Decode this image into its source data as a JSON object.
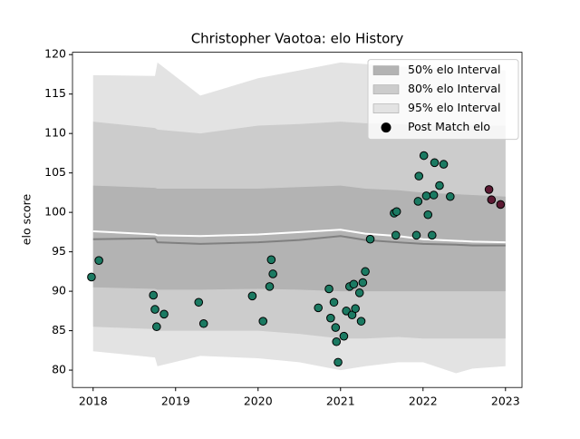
{
  "chart_data": {
    "type": "band",
    "title": "Christopher Vaotoa: elo History",
    "ylabel": "elo score",
    "xlim": [
      2017.75,
      2023.2
    ],
    "ylim": [
      77.8,
      120.3
    ],
    "xticks": [
      2018,
      2019,
      2020,
      2021,
      2022,
      2023
    ],
    "yticks": [
      80,
      85,
      90,
      95,
      100,
      105,
      110,
      115,
      120
    ],
    "legend": "upper right",
    "bands": {
      "x": [
        2018.0,
        2018.75,
        2018.78,
        2019.3,
        2020.0,
        2020.5,
        2021.0,
        2021.3,
        2021.7,
        2022.0,
        2022.4,
        2022.6,
        2023.0
      ],
      "intervals": [
        {
          "name": "95% elo Interval",
          "color": "#e3e3e3",
          "upper": [
            117.4,
            117.3,
            119.0,
            114.8,
            117.0,
            118.0,
            119.0,
            118.8,
            118.5,
            118.4,
            118.2,
            118.0,
            118.0
          ],
          "lower": [
            82.4,
            81.6,
            80.5,
            81.8,
            81.5,
            81.0,
            80.0,
            80.5,
            81.0,
            81.0,
            79.6,
            80.2,
            80.5
          ]
        },
        {
          "name": "80% elo Interval",
          "color": "#cccccc",
          "upper": [
            111.5,
            110.7,
            110.5,
            110.0,
            111.0,
            111.2,
            111.5,
            111.3,
            111.2,
            111.0,
            111.0,
            111.0,
            111.0
          ],
          "lower": [
            85.5,
            85.2,
            85.0,
            85.0,
            85.0,
            84.6,
            84.0,
            84.0,
            84.2,
            84.0,
            84.0,
            84.0,
            84.0
          ]
        },
        {
          "name": "50% elo Interval",
          "color": "#b3b3b3",
          "upper": [
            103.4,
            103.1,
            103.0,
            103.0,
            103.0,
            103.2,
            103.4,
            103.0,
            102.8,
            102.5,
            102.3,
            102.2,
            102.0
          ],
          "lower": [
            90.5,
            90.3,
            90.2,
            90.2,
            90.3,
            90.2,
            90.0,
            90.0,
            90.0,
            90.0,
            90.0,
            90.0,
            90.0
          ]
        }
      ]
    },
    "lines": [
      {
        "color": "#808080",
        "values": [
          96.6,
          96.7,
          96.2,
          96.0,
          96.2,
          96.5,
          97.0,
          96.5,
          96.2,
          96.0,
          95.9,
          95.8,
          95.8
        ]
      },
      {
        "color": "#ffffff",
        "values": [
          97.6,
          97.2,
          97.1,
          97.0,
          97.2,
          97.5,
          97.8,
          97.3,
          97.0,
          96.6,
          96.4,
          96.3,
          96.2
        ]
      }
    ],
    "points": {
      "name": "Post Match elo",
      "legend_color": "#000000",
      "edgecolor": "#000000",
      "series": [
        {
          "color": "#1b7a62",
          "x": [
            2017.98,
            2018.07,
            2018.73,
            2018.75,
            2018.77,
            2018.86,
            2019.28,
            2019.34,
            2019.93,
            2020.06,
            2020.14,
            2020.16,
            2020.18,
            2020.73,
            2020.86,
            2020.88,
            2020.92,
            2020.94,
            2020.95,
            2020.97,
            2021.04,
            2021.07,
            2021.11,
            2021.14,
            2021.16,
            2021.18,
            2021.23,
            2021.25,
            2021.27,
            2021.3,
            2021.36,
            2021.65,
            2021.68,
            2021.67,
            2021.92,
            2021.94,
            2021.95,
            2022.01,
            2022.04,
            2022.06,
            2022.11,
            2022.13,
            2022.14,
            2022.2,
            2022.25,
            2022.33
          ],
          "values": [
            91.8,
            93.9,
            89.5,
            87.7,
            85.5,
            87.1,
            88.6,
            85.9,
            89.4,
            86.2,
            90.6,
            94.0,
            92.2,
            87.9,
            90.3,
            86.6,
            88.6,
            85.4,
            83.6,
            81.0,
            84.3,
            87.5,
            90.6,
            87.0,
            90.9,
            87.8,
            89.8,
            86.2,
            91.1,
            92.5,
            96.6,
            99.9,
            100.1,
            97.1,
            97.1,
            101.4,
            104.6,
            107.2,
            102.1,
            99.7,
            97.1,
            102.2,
            106.3,
            103.4,
            106.1,
            102.0
          ]
        },
        {
          "color": "#5c1a33",
          "x": [
            2022.8,
            2022.83,
            2022.94
          ],
          "values": [
            102.9,
            101.6,
            101.0
          ]
        }
      ]
    }
  }
}
